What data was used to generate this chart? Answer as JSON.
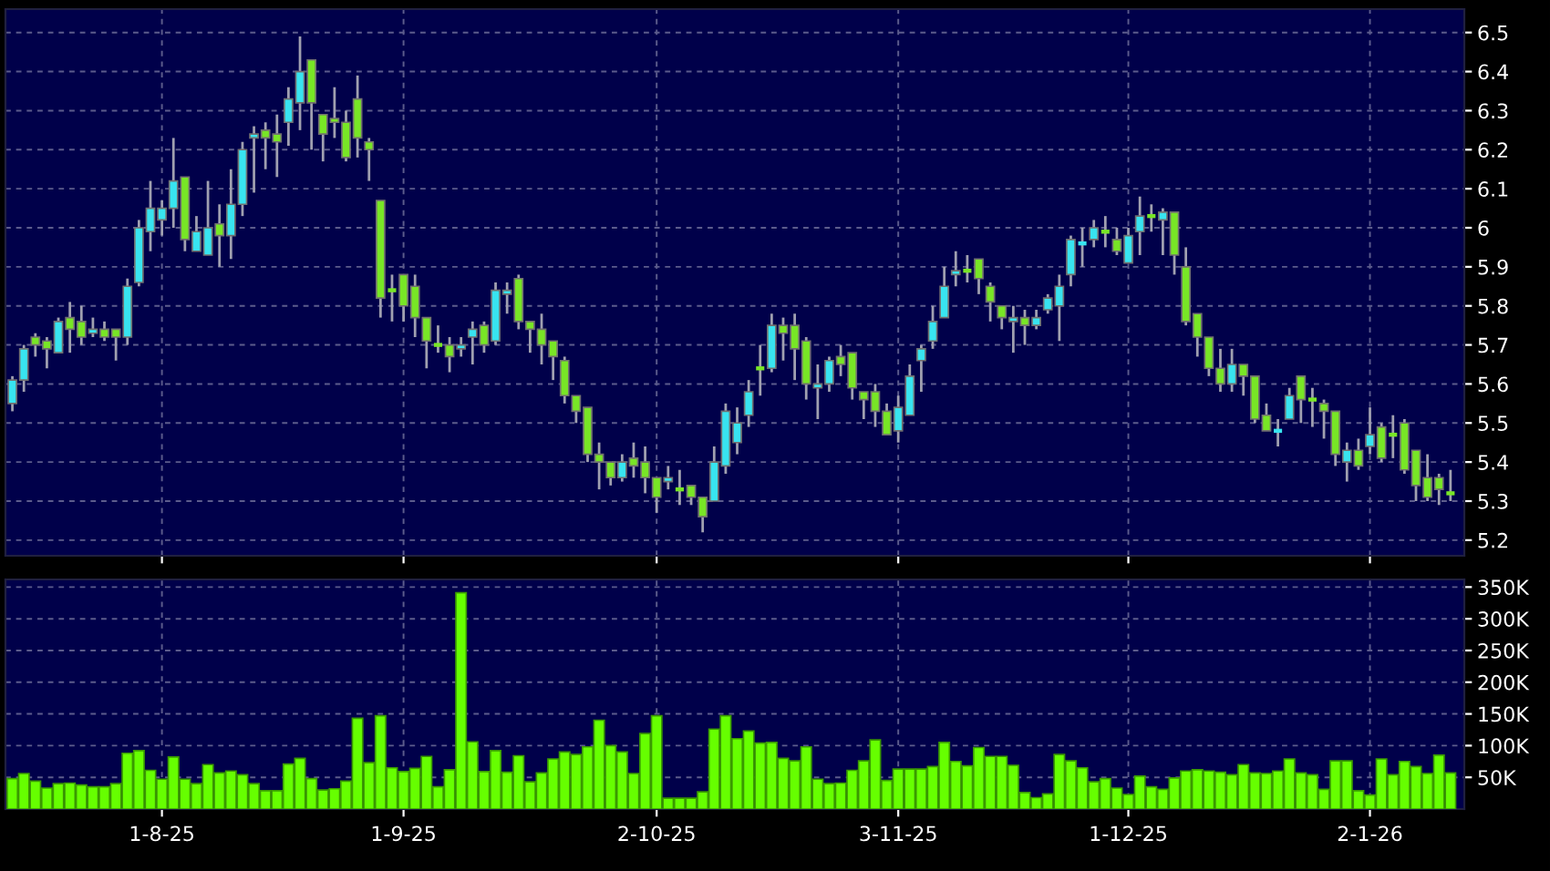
{
  "chart_data": [
    {
      "type": "candlestick",
      "grid": true,
      "tick_labels": "y",
      "categories": [
        null,
        null,
        null,
        null,
        null,
        null,
        null,
        null,
        null,
        null,
        null,
        null,
        null,
        null,
        null,
        null,
        null,
        null,
        null,
        null,
        null,
        null,
        null,
        null,
        null,
        null,
        null,
        null,
        null,
        null,
        null,
        null,
        null,
        null,
        null,
        null,
        null,
        null,
        null,
        null,
        null,
        null,
        null,
        null,
        null,
        null,
        null,
        null,
        null,
        null,
        null,
        null,
        null,
        null,
        null,
        null,
        null,
        null,
        null,
        null,
        null,
        null,
        null,
        null,
        null,
        null,
        null,
        null,
        null,
        null,
        null,
        null,
        null,
        null,
        null,
        null,
        null,
        null,
        null,
        null,
        null,
        null,
        null,
        null,
        null,
        null,
        null,
        null,
        null,
        null,
        null,
        null,
        null,
        null,
        null,
        null,
        null,
        null,
        null,
        null,
        null,
        null,
        null,
        null,
        null,
        null,
        null,
        null,
        null,
        null,
        null,
        null,
        null,
        null,
        null,
        null,
        null,
        null,
        null,
        null,
        null,
        null,
        null,
        null,
        null,
        null
      ],
      "ohlc": [
        [
          5.55,
          5.62,
          5.53,
          5.61
        ],
        [
          5.61,
          5.7,
          5.58,
          5.69
        ],
        [
          5.72,
          5.73,
          5.67,
          5.7
        ],
        [
          5.71,
          5.72,
          5.64,
          5.69
        ],
        [
          5.68,
          5.77,
          5.68,
          5.76
        ],
        [
          5.77,
          5.81,
          5.68,
          5.74
        ],
        [
          5.76,
          5.8,
          5.7,
          5.72
        ],
        [
          5.73,
          5.77,
          5.72,
          5.74
        ],
        [
          5.74,
          5.76,
          5.71,
          5.72
        ],
        [
          5.74,
          5.74,
          5.66,
          5.72
        ],
        [
          5.72,
          5.87,
          5.7,
          5.85
        ],
        [
          5.86,
          6.02,
          5.85,
          6.0
        ],
        [
          5.99,
          6.12,
          5.94,
          6.05
        ],
        [
          6.02,
          6.07,
          5.98,
          6.05
        ],
        [
          6.05,
          6.23,
          6.0,
          6.12
        ],
        [
          6.13,
          6.13,
          5.94,
          5.97
        ],
        [
          5.94,
          6.03,
          5.94,
          5.99
        ],
        [
          5.93,
          6.12,
          5.93,
          6.0
        ],
        [
          6.01,
          6.06,
          5.9,
          5.98
        ],
        [
          5.98,
          6.15,
          5.92,
          6.06
        ],
        [
          6.06,
          6.22,
          6.03,
          6.2
        ],
        [
          6.23,
          6.26,
          6.09,
          6.24
        ],
        [
          6.25,
          6.27,
          6.15,
          6.23
        ],
        [
          6.24,
          6.29,
          6.13,
          6.22
        ],
        [
          6.27,
          6.36,
          6.21,
          6.33
        ],
        [
          6.32,
          6.49,
          6.25,
          6.4
        ],
        [
          6.43,
          6.43,
          6.2,
          6.32
        ],
        [
          6.29,
          6.29,
          6.17,
          6.24
        ],
        [
          6.28,
          6.36,
          6.23,
          6.27
        ],
        [
          6.27,
          6.3,
          6.17,
          6.18
        ],
        [
          6.33,
          6.39,
          6.18,
          6.23
        ],
        [
          6.22,
          6.23,
          6.12,
          6.2
        ],
        [
          6.07,
          6.07,
          5.77,
          5.82
        ],
        [
          5.84,
          5.88,
          5.76,
          5.84
        ],
        [
          5.88,
          5.88,
          5.76,
          5.8
        ],
        [
          5.85,
          5.88,
          5.72,
          5.77
        ],
        [
          5.77,
          5.77,
          5.64,
          5.71
        ],
        [
          5.7,
          5.75,
          5.68,
          5.7
        ],
        [
          5.7,
          5.72,
          5.63,
          5.67
        ],
        [
          5.69,
          5.72,
          5.67,
          5.7
        ],
        [
          5.72,
          5.76,
          5.65,
          5.74
        ],
        [
          5.75,
          5.76,
          5.68,
          5.7
        ],
        [
          5.71,
          5.86,
          5.7,
          5.84
        ],
        [
          5.83,
          5.86,
          5.78,
          5.84
        ],
        [
          5.87,
          5.88,
          5.74,
          5.76
        ],
        [
          5.76,
          5.76,
          5.68,
          5.74
        ],
        [
          5.74,
          5.78,
          5.65,
          5.7
        ],
        [
          5.71,
          5.71,
          5.61,
          5.67
        ],
        [
          5.66,
          5.67,
          5.55,
          5.57
        ],
        [
          5.57,
          5.57,
          5.5,
          5.53
        ],
        [
          5.54,
          5.54,
          5.4,
          5.42
        ],
        [
          5.42,
          5.45,
          5.33,
          5.4
        ],
        [
          5.4,
          5.4,
          5.34,
          5.36
        ],
        [
          5.36,
          5.42,
          5.35,
          5.4
        ],
        [
          5.41,
          5.45,
          5.36,
          5.39
        ],
        [
          5.4,
          5.44,
          5.32,
          5.36
        ],
        [
          5.36,
          5.36,
          5.27,
          5.31
        ],
        [
          5.35,
          5.39,
          5.33,
          5.36
        ],
        [
          5.33,
          5.38,
          5.29,
          5.33
        ],
        [
          5.34,
          5.34,
          5.29,
          5.31
        ],
        [
          5.31,
          5.31,
          5.22,
          5.26
        ],
        [
          5.3,
          5.44,
          5.3,
          5.4
        ],
        [
          5.39,
          5.55,
          5.37,
          5.53
        ],
        [
          5.45,
          5.54,
          5.42,
          5.5
        ],
        [
          5.52,
          5.61,
          5.49,
          5.58
        ],
        [
          5.64,
          5.7,
          5.57,
          5.64
        ],
        [
          5.64,
          5.78,
          5.63,
          5.75
        ],
        [
          5.75,
          5.77,
          5.66,
          5.73
        ],
        [
          5.75,
          5.78,
          5.61,
          5.69
        ],
        [
          5.71,
          5.72,
          5.56,
          5.6
        ],
        [
          5.59,
          5.65,
          5.51,
          5.6
        ],
        [
          5.6,
          5.67,
          5.58,
          5.66
        ],
        [
          5.67,
          5.7,
          5.62,
          5.65
        ],
        [
          5.68,
          5.68,
          5.56,
          5.59
        ],
        [
          5.58,
          5.58,
          5.51,
          5.56
        ],
        [
          5.58,
          5.6,
          5.49,
          5.53
        ],
        [
          5.53,
          5.55,
          5.47,
          5.47
        ],
        [
          5.48,
          5.57,
          5.45,
          5.54
        ],
        [
          5.52,
          5.65,
          5.52,
          5.62
        ],
        [
          5.66,
          5.7,
          5.58,
          5.69
        ],
        [
          5.71,
          5.8,
          5.69,
          5.76
        ],
        [
          5.77,
          5.9,
          5.77,
          5.85
        ],
        [
          5.88,
          5.94,
          5.85,
          5.89
        ],
        [
          5.89,
          5.93,
          5.86,
          5.89
        ],
        [
          5.92,
          5.92,
          5.83,
          5.87
        ],
        [
          5.85,
          5.86,
          5.76,
          5.81
        ],
        [
          5.8,
          5.8,
          5.74,
          5.77
        ],
        [
          5.76,
          5.8,
          5.68,
          5.77
        ],
        [
          5.77,
          5.79,
          5.7,
          5.75
        ],
        [
          5.75,
          5.79,
          5.74,
          5.77
        ],
        [
          5.79,
          5.83,
          5.78,
          5.82
        ],
        [
          5.8,
          5.88,
          5.71,
          5.85
        ],
        [
          5.88,
          5.98,
          5.85,
          5.97
        ],
        [
          5.96,
          6.0,
          5.9,
          5.96
        ],
        [
          5.97,
          6.02,
          5.95,
          6.0
        ],
        [
          5.99,
          6.03,
          5.95,
          5.99
        ],
        [
          5.97,
          6.0,
          5.93,
          5.94
        ],
        [
          5.91,
          6.0,
          5.91,
          5.98
        ],
        [
          5.99,
          6.08,
          5.93,
          6.03
        ],
        [
          6.03,
          6.06,
          5.99,
          6.03
        ],
        [
          6.02,
          6.05,
          5.93,
          6.04
        ],
        [
          6.04,
          6.04,
          5.88,
          5.93
        ],
        [
          5.9,
          5.95,
          5.75,
          5.76
        ],
        [
          5.78,
          5.78,
          5.67,
          5.72
        ],
        [
          5.72,
          5.72,
          5.62,
          5.64
        ],
        [
          5.64,
          5.69,
          5.58,
          5.6
        ],
        [
          5.6,
          5.69,
          5.58,
          5.65
        ],
        [
          5.65,
          5.65,
          5.57,
          5.62
        ],
        [
          5.62,
          5.62,
          5.5,
          5.51
        ],
        [
          5.52,
          5.55,
          5.48,
          5.48
        ],
        [
          5.48,
          5.51,
          5.44,
          5.48
        ],
        [
          5.51,
          5.59,
          5.51,
          5.57
        ],
        [
          5.62,
          5.62,
          5.5,
          5.56
        ],
        [
          5.56,
          5.59,
          5.49,
          5.56
        ],
        [
          5.55,
          5.56,
          5.46,
          5.53
        ],
        [
          5.53,
          5.53,
          5.39,
          5.42
        ],
        [
          5.4,
          5.45,
          5.35,
          5.43
        ],
        [
          5.43,
          5.46,
          5.38,
          5.39
        ],
        [
          5.44,
          5.54,
          5.42,
          5.47
        ],
        [
          5.49,
          5.5,
          5.4,
          5.41
        ],
        [
          5.47,
          5.52,
          5.41,
          5.47
        ],
        [
          5.5,
          5.51,
          5.37,
          5.38
        ],
        [
          5.43,
          5.43,
          5.3,
          5.34
        ],
        [
          5.36,
          5.42,
          5.3,
          5.31
        ],
        [
          5.36,
          5.37,
          5.29,
          5.33
        ],
        [
          5.32,
          5.38,
          5.3,
          5.32
        ]
      ],
      "colors": [
        "#38e4f0",
        "#38e4f0",
        "#78e626",
        "#78e626",
        "#38e4f0",
        "#78e626",
        "#78e626",
        "#38e4f0",
        "#78e626",
        "#78e626",
        "#38e4f0",
        "#38e4f0",
        "#38e4f0",
        "#38e4f0",
        "#38e4f0",
        "#78e626",
        "#38e4f0",
        "#38e4f0",
        "#78e626",
        "#38e4f0",
        "#38e4f0",
        "#38e4f0",
        "#78e626",
        "#78e626",
        "#38e4f0",
        "#38e4f0",
        "#78e626",
        "#78e626",
        "#78e626",
        "#78e626",
        "#78e626",
        "#78e626",
        "#78e626",
        "#78e626",
        "#78e626",
        "#78e626",
        "#78e626",
        "#78e626",
        "#78e626",
        "#38e4f0",
        "#38e4f0",
        "#78e626",
        "#38e4f0",
        "#38e4f0",
        "#78e626",
        "#78e626",
        "#78e626",
        "#78e626",
        "#78e626",
        "#78e626",
        "#78e626",
        "#78e626",
        "#78e626",
        "#38e4f0",
        "#78e626",
        "#78e626",
        "#78e626",
        "#38e4f0",
        "#78e626",
        "#78e626",
        "#78e626",
        "#38e4f0",
        "#38e4f0",
        "#38e4f0",
        "#38e4f0",
        "#78e626",
        "#38e4f0",
        "#78e626",
        "#78e626",
        "#78e626",
        "#38e4f0",
        "#38e4f0",
        "#78e626",
        "#78e626",
        "#78e626",
        "#78e626",
        "#78e626",
        "#38e4f0",
        "#38e4f0",
        "#38e4f0",
        "#38e4f0",
        "#38e4f0",
        "#38e4f0",
        "#78e626",
        "#78e626",
        "#78e626",
        "#78e626",
        "#38e4f0",
        "#78e626",
        "#38e4f0",
        "#38e4f0",
        "#38e4f0",
        "#38e4f0",
        "#38e4f0",
        "#38e4f0",
        "#78e626",
        "#78e626",
        "#38e4f0",
        "#38e4f0",
        "#78e626",
        "#38e4f0",
        "#78e626",
        "#78e626",
        "#78e626",
        "#78e626",
        "#78e626",
        "#38e4f0",
        "#78e626",
        "#78e626",
        "#78e626",
        "#38e4f0",
        "#38e4f0",
        "#78e626",
        "#78e626",
        "#78e626",
        "#78e626",
        "#38e4f0",
        "#78e626",
        "#38e4f0",
        "#78e626",
        "#78e626",
        "#78e626",
        "#78e626",
        "#78e626",
        "#78e626",
        "#78e626"
      ],
      "ylim": [
        5.16,
        6.56
      ],
      "yticks": [
        5.2,
        5.3,
        5.4,
        5.5,
        5.6,
        5.7,
        5.8,
        5.9,
        6,
        6.1,
        6.2,
        6.3,
        6.4,
        6.5
      ]
    },
    {
      "type": "bar",
      "grid": true,
      "color": "#66ff00",
      "categories": [
        null,
        null,
        null,
        null,
        null,
        null,
        null,
        null,
        null,
        null,
        null,
        null,
        null,
        "1-8-25",
        null,
        null,
        null,
        null,
        null,
        null,
        null,
        null,
        null,
        null,
        null,
        null,
        null,
        null,
        null,
        null,
        null,
        null,
        null,
        null,
        "1-9-25",
        null,
        null,
        null,
        null,
        null,
        null,
        null,
        null,
        null,
        null,
        null,
        null,
        null,
        null,
        null,
        null,
        null,
        null,
        null,
        null,
        null,
        "2-10-25",
        null,
        null,
        null,
        null,
        null,
        null,
        null,
        null,
        null,
        null,
        null,
        null,
        null,
        null,
        null,
        null,
        null,
        null,
        null,
        null,
        "3-11-25",
        null,
        null,
        null,
        null,
        null,
        null,
        null,
        null,
        null,
        null,
        null,
        null,
        null,
        null,
        null,
        null,
        null,
        null,
        null,
        "1-12-25",
        null,
        null,
        null,
        null,
        null,
        null,
        null,
        null,
        null,
        null,
        null,
        null,
        null,
        null,
        null,
        null,
        null,
        null,
        null,
        null,
        "2-1-26",
        null,
        null,
        null,
        null,
        null,
        null,
        null
      ],
      "values": [
        48000,
        56000,
        44000,
        33000,
        40000,
        41000,
        38000,
        35000,
        35000,
        40000,
        88000,
        92000,
        61000,
        47000,
        82000,
        47000,
        40000,
        70000,
        57000,
        60000,
        54000,
        40000,
        29000,
        29000,
        71000,
        80000,
        48000,
        30000,
        32000,
        44000,
        143000,
        73000,
        147000,
        65000,
        59000,
        64000,
        83000,
        35000,
        62000,
        341000,
        106000,
        59000,
        92000,
        58000,
        84000,
        43000,
        57000,
        79000,
        90000,
        86000,
        98000,
        140000,
        100000,
        90000,
        56000,
        119000,
        147000,
        17000,
        17000,
        17000,
        27000,
        126000,
        147000,
        111000,
        123000,
        104000,
        105000,
        80000,
        76000,
        98000,
        47000,
        40000,
        41000,
        61000,
        76000,
        109000,
        45000,
        63000,
        63000,
        63000,
        67000,
        105000,
        75000,
        68000,
        97000,
        83000,
        83000,
        69000,
        26000,
        18000,
        24000,
        86000,
        76000,
        65000,
        43000,
        48000,
        33000,
        23000,
        52000,
        35000,
        31000,
        49000,
        60000,
        62000,
        60000,
        58000,
        54000,
        70000,
        57000,
        56000,
        60000,
        79000,
        57000,
        54000,
        31000,
        76000,
        76000,
        29000,
        22000,
        79000,
        54000,
        75000,
        67000,
        56000,
        85000,
        57000
      ],
      "ylim": [
        0,
        362000
      ],
      "yticks": [
        {
          "value": 50000,
          "label": "50K"
        },
        {
          "value": 100000,
          "label": "100K"
        },
        {
          "value": 150000,
          "label": "150K"
        },
        {
          "value": 200000,
          "label": "200K"
        },
        {
          "value": 250000,
          "label": "250K"
        },
        {
          "value": 300000,
          "label": "300K"
        },
        {
          "value": 350000,
          "label": "350K"
        }
      ]
    }
  ]
}
